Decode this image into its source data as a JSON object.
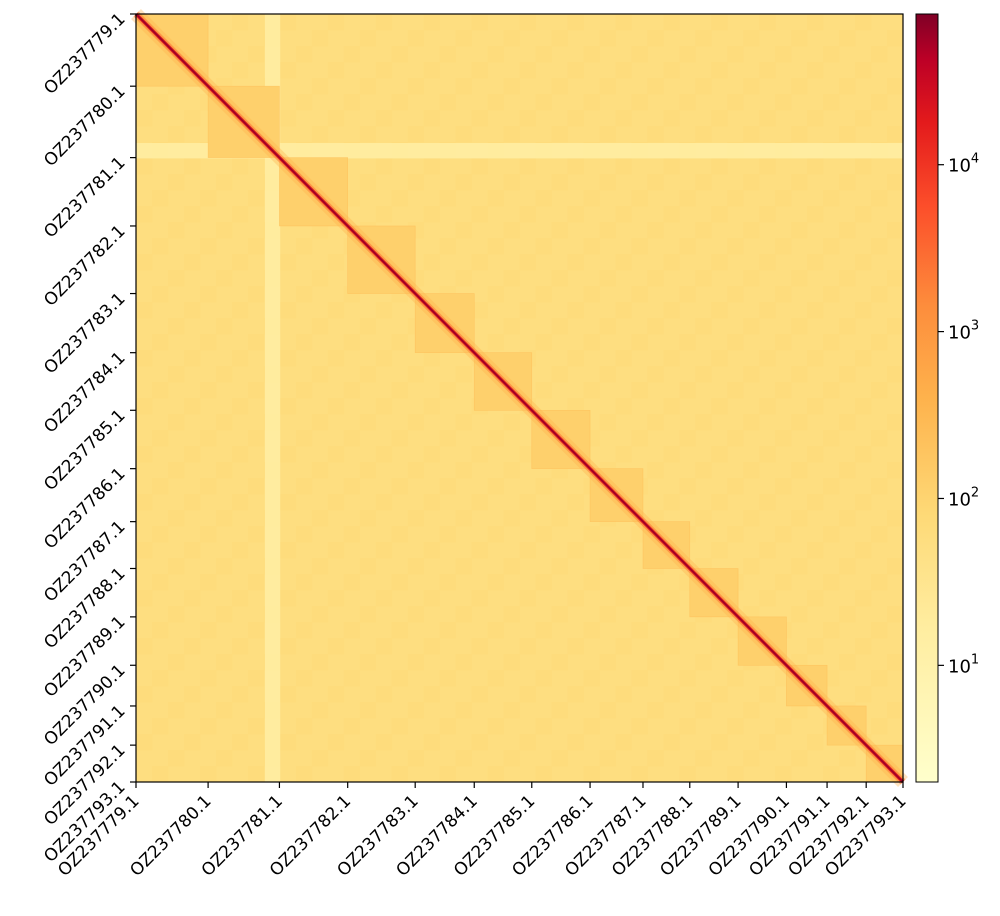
{
  "chart_data": {
    "type": "heatmap",
    "scale": "log",
    "colormap": "YlOrRd",
    "contigs": [
      {
        "name": "OZ237779.1",
        "start": 0,
        "end": 0.094
      },
      {
        "name": "OZ237780.1",
        "start": 0.094,
        "end": 0.187
      },
      {
        "name": "OZ237781.1",
        "start": 0.187,
        "end": 0.276
      },
      {
        "name": "OZ237782.1",
        "start": 0.276,
        "end": 0.364
      },
      {
        "name": "OZ237783.1",
        "start": 0.364,
        "end": 0.441
      },
      {
        "name": "OZ237784.1",
        "start": 0.441,
        "end": 0.516
      },
      {
        "name": "OZ237785.1",
        "start": 0.516,
        "end": 0.592
      },
      {
        "name": "OZ237786.1",
        "start": 0.592,
        "end": 0.661
      },
      {
        "name": "OZ237787.1",
        "start": 0.661,
        "end": 0.722
      },
      {
        "name": "OZ237788.1",
        "start": 0.722,
        "end": 0.785
      },
      {
        "name": "OZ237789.1",
        "start": 0.785,
        "end": 0.848
      },
      {
        "name": "OZ237790.1",
        "start": 0.848,
        "end": 0.901
      },
      {
        "name": "OZ237791.1",
        "start": 0.901,
        "end": 0.952
      },
      {
        "name": "OZ237792.1",
        "start": 0.952,
        "end": 1.0
      },
      {
        "name": "OZ237793.1",
        "start": 1.0,
        "end": 1.0
      }
    ],
    "colorbar": {
      "min": 2,
      "max": 80000,
      "ticks": [
        {
          "value": 10,
          "base": "10",
          "exp": "1"
        },
        {
          "value": 100,
          "base": "10",
          "exp": "2"
        },
        {
          "value": 1000,
          "base": "10",
          "exp": "3"
        },
        {
          "value": 10000,
          "base": "10",
          "exp": "4"
        }
      ]
    },
    "background_level": 55,
    "diagonal_level": 20000,
    "colors": {
      "low": "#ffffcc",
      "mid1": "#fed976",
      "mid2": "#feb24c",
      "mid3": "#fd8d3c",
      "mid4": "#fc4e2a",
      "mid5": "#e31a1c",
      "high": "#800026"
    }
  }
}
